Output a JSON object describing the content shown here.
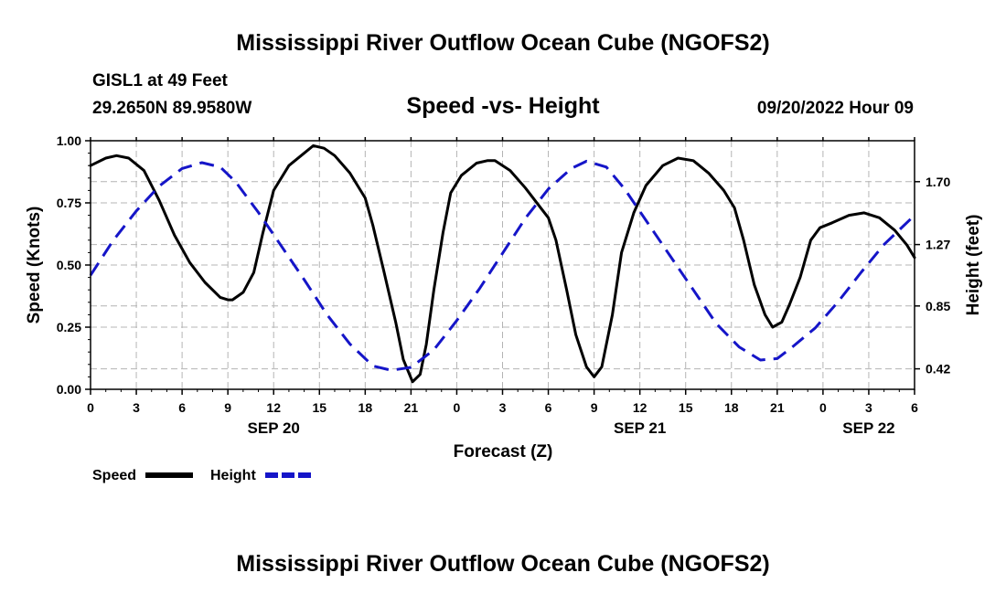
{
  "page": {
    "title_top": "Mississippi River Outflow Ocean Cube (NGOFS2)",
    "title_bottom": "Mississippi River Outflow Ocean Cube (NGOFS2)",
    "station": "GISL1 at 49 Feet",
    "coords": "29.2650N  89.9580W",
    "chart_title": "Speed -vs- Height",
    "datetime": "09/20/2022 Hour 09"
  },
  "chart_data": {
    "type": "line",
    "title": "Speed -vs- Height",
    "xlabel": "Forecast (Z)",
    "ylabel": "Speed (Knots)",
    "y2label": "Height (feet)",
    "x_range_hours": [
      0,
      54
    ],
    "ylim": [
      0,
      1
    ],
    "y2lim": [
      0.28,
      1.98
    ],
    "grid": true,
    "x_ticks": [
      {
        "h": 0,
        "label": "0"
      },
      {
        "h": 3,
        "label": "3"
      },
      {
        "h": 6,
        "label": "6"
      },
      {
        "h": 9,
        "label": "9"
      },
      {
        "h": 12,
        "label": "12"
      },
      {
        "h": 15,
        "label": "15"
      },
      {
        "h": 18,
        "label": "18"
      },
      {
        "h": 21,
        "label": "21"
      },
      {
        "h": 24,
        "label": "0"
      },
      {
        "h": 27,
        "label": "3"
      },
      {
        "h": 30,
        "label": "6"
      },
      {
        "h": 33,
        "label": "9"
      },
      {
        "h": 36,
        "label": "12"
      },
      {
        "h": 39,
        "label": "15"
      },
      {
        "h": 42,
        "label": "18"
      },
      {
        "h": 45,
        "label": "21"
      },
      {
        "h": 48,
        "label": "0"
      },
      {
        "h": 51,
        "label": "3"
      },
      {
        "h": 54,
        "label": "6"
      }
    ],
    "date_labels": [
      {
        "h": 12,
        "label": "SEP 20"
      },
      {
        "h": 36,
        "label": "SEP 21"
      },
      {
        "h": 51,
        "label": "SEP 22"
      }
    ],
    "y_ticks": [
      {
        "v": 0.0,
        "label": "0.00"
      },
      {
        "v": 0.25,
        "label": "0.25"
      },
      {
        "v": 0.5,
        "label": "0.50"
      },
      {
        "v": 0.75,
        "label": "0.75"
      },
      {
        "v": 1.0,
        "label": "1.00"
      }
    ],
    "y2_ticks": [
      {
        "v": 0.42,
        "label": "0.42"
      },
      {
        "v": 0.85,
        "label": "0.85"
      },
      {
        "v": 1.27,
        "label": "1.27"
      },
      {
        "v": 1.7,
        "label": "1.70"
      }
    ],
    "series": [
      {
        "name": "Speed",
        "axis": "left",
        "color": "#000000",
        "style": "solid",
        "points": [
          [
            0,
            0.9
          ],
          [
            1,
            0.93
          ],
          [
            1.7,
            0.94
          ],
          [
            2.5,
            0.93
          ],
          [
            3.5,
            0.88
          ],
          [
            4.5,
            0.76
          ],
          [
            5.5,
            0.62
          ],
          [
            6.5,
            0.51
          ],
          [
            7.5,
            0.43
          ],
          [
            8.5,
            0.37
          ],
          [
            9,
            0.36
          ],
          [
            9.3,
            0.36
          ],
          [
            10,
            0.39
          ],
          [
            10.7,
            0.47
          ],
          [
            11.3,
            0.63
          ],
          [
            12,
            0.8
          ],
          [
            13,
            0.9
          ],
          [
            14,
            0.95
          ],
          [
            14.6,
            0.98
          ],
          [
            15.3,
            0.97
          ],
          [
            16,
            0.94
          ],
          [
            17,
            0.87
          ],
          [
            18,
            0.77
          ],
          [
            18.5,
            0.66
          ],
          [
            19.2,
            0.48
          ],
          [
            20,
            0.27
          ],
          [
            20.5,
            0.12
          ],
          [
            21.1,
            0.03
          ],
          [
            21.6,
            0.06
          ],
          [
            22,
            0.18
          ],
          [
            22.5,
            0.4
          ],
          [
            23.1,
            0.63
          ],
          [
            23.6,
            0.79
          ],
          [
            24.3,
            0.86
          ],
          [
            25.3,
            0.91
          ],
          [
            26,
            0.92
          ],
          [
            26.5,
            0.92
          ],
          [
            27.5,
            0.88
          ],
          [
            28.5,
            0.81
          ],
          [
            29.5,
            0.73
          ],
          [
            30,
            0.69
          ],
          [
            30.5,
            0.6
          ],
          [
            31.2,
            0.4
          ],
          [
            31.8,
            0.22
          ],
          [
            32.5,
            0.09
          ],
          [
            33,
            0.05
          ],
          [
            33.5,
            0.09
          ],
          [
            34.2,
            0.3
          ],
          [
            34.8,
            0.55
          ],
          [
            35.6,
            0.71
          ],
          [
            36.4,
            0.82
          ],
          [
            37.5,
            0.9
          ],
          [
            38.5,
            0.93
          ],
          [
            39.5,
            0.92
          ],
          [
            40.5,
            0.87
          ],
          [
            41.5,
            0.8
          ],
          [
            42.2,
            0.73
          ],
          [
            42.8,
            0.6
          ],
          [
            43.5,
            0.42
          ],
          [
            44.2,
            0.3
          ],
          [
            44.7,
            0.25
          ],
          [
            45.3,
            0.27
          ],
          [
            45.8,
            0.34
          ],
          [
            46.5,
            0.45
          ],
          [
            47.2,
            0.6
          ],
          [
            47.8,
            0.65
          ],
          [
            48.6,
            0.67
          ],
          [
            49.7,
            0.7
          ],
          [
            50.7,
            0.71
          ],
          [
            51.7,
            0.69
          ],
          [
            52.7,
            0.64
          ],
          [
            53.5,
            0.58
          ],
          [
            54,
            0.53
          ]
        ]
      },
      {
        "name": "Height",
        "axis": "right",
        "color": "#1515c8",
        "style": "dashed",
        "points": [
          [
            0,
            1.06
          ],
          [
            1.5,
            1.3
          ],
          [
            3,
            1.5
          ],
          [
            4.5,
            1.67
          ],
          [
            6,
            1.79
          ],
          [
            7.3,
            1.83
          ],
          [
            8.5,
            1.8
          ],
          [
            9.5,
            1.7
          ],
          [
            11,
            1.49
          ],
          [
            12.5,
            1.26
          ],
          [
            14,
            1.03
          ],
          [
            15.5,
            0.79
          ],
          [
            17,
            0.59
          ],
          [
            18.5,
            0.44
          ],
          [
            19.7,
            0.41
          ],
          [
            21,
            0.43
          ],
          [
            22.5,
            0.55
          ],
          [
            24,
            0.75
          ],
          [
            25.5,
            0.97
          ],
          [
            27,
            1.21
          ],
          [
            28.5,
            1.45
          ],
          [
            30,
            1.65
          ],
          [
            31.5,
            1.79
          ],
          [
            32.5,
            1.84
          ],
          [
            33.8,
            1.8
          ],
          [
            35,
            1.65
          ],
          [
            36.5,
            1.42
          ],
          [
            38,
            1.19
          ],
          [
            39.5,
            0.96
          ],
          [
            41,
            0.73
          ],
          [
            42.5,
            0.57
          ],
          [
            43.9,
            0.48
          ],
          [
            45,
            0.49
          ],
          [
            46,
            0.57
          ],
          [
            47.5,
            0.7
          ],
          [
            49,
            0.88
          ],
          [
            50.5,
            1.08
          ],
          [
            52,
            1.27
          ],
          [
            54,
            1.47
          ]
        ]
      }
    ],
    "legend": [
      {
        "label": "Speed",
        "color": "#000000",
        "style": "solid"
      },
      {
        "label": "Height",
        "color": "#1515c8",
        "style": "dashed"
      }
    ],
    "legend_position": "bottom-left"
  }
}
